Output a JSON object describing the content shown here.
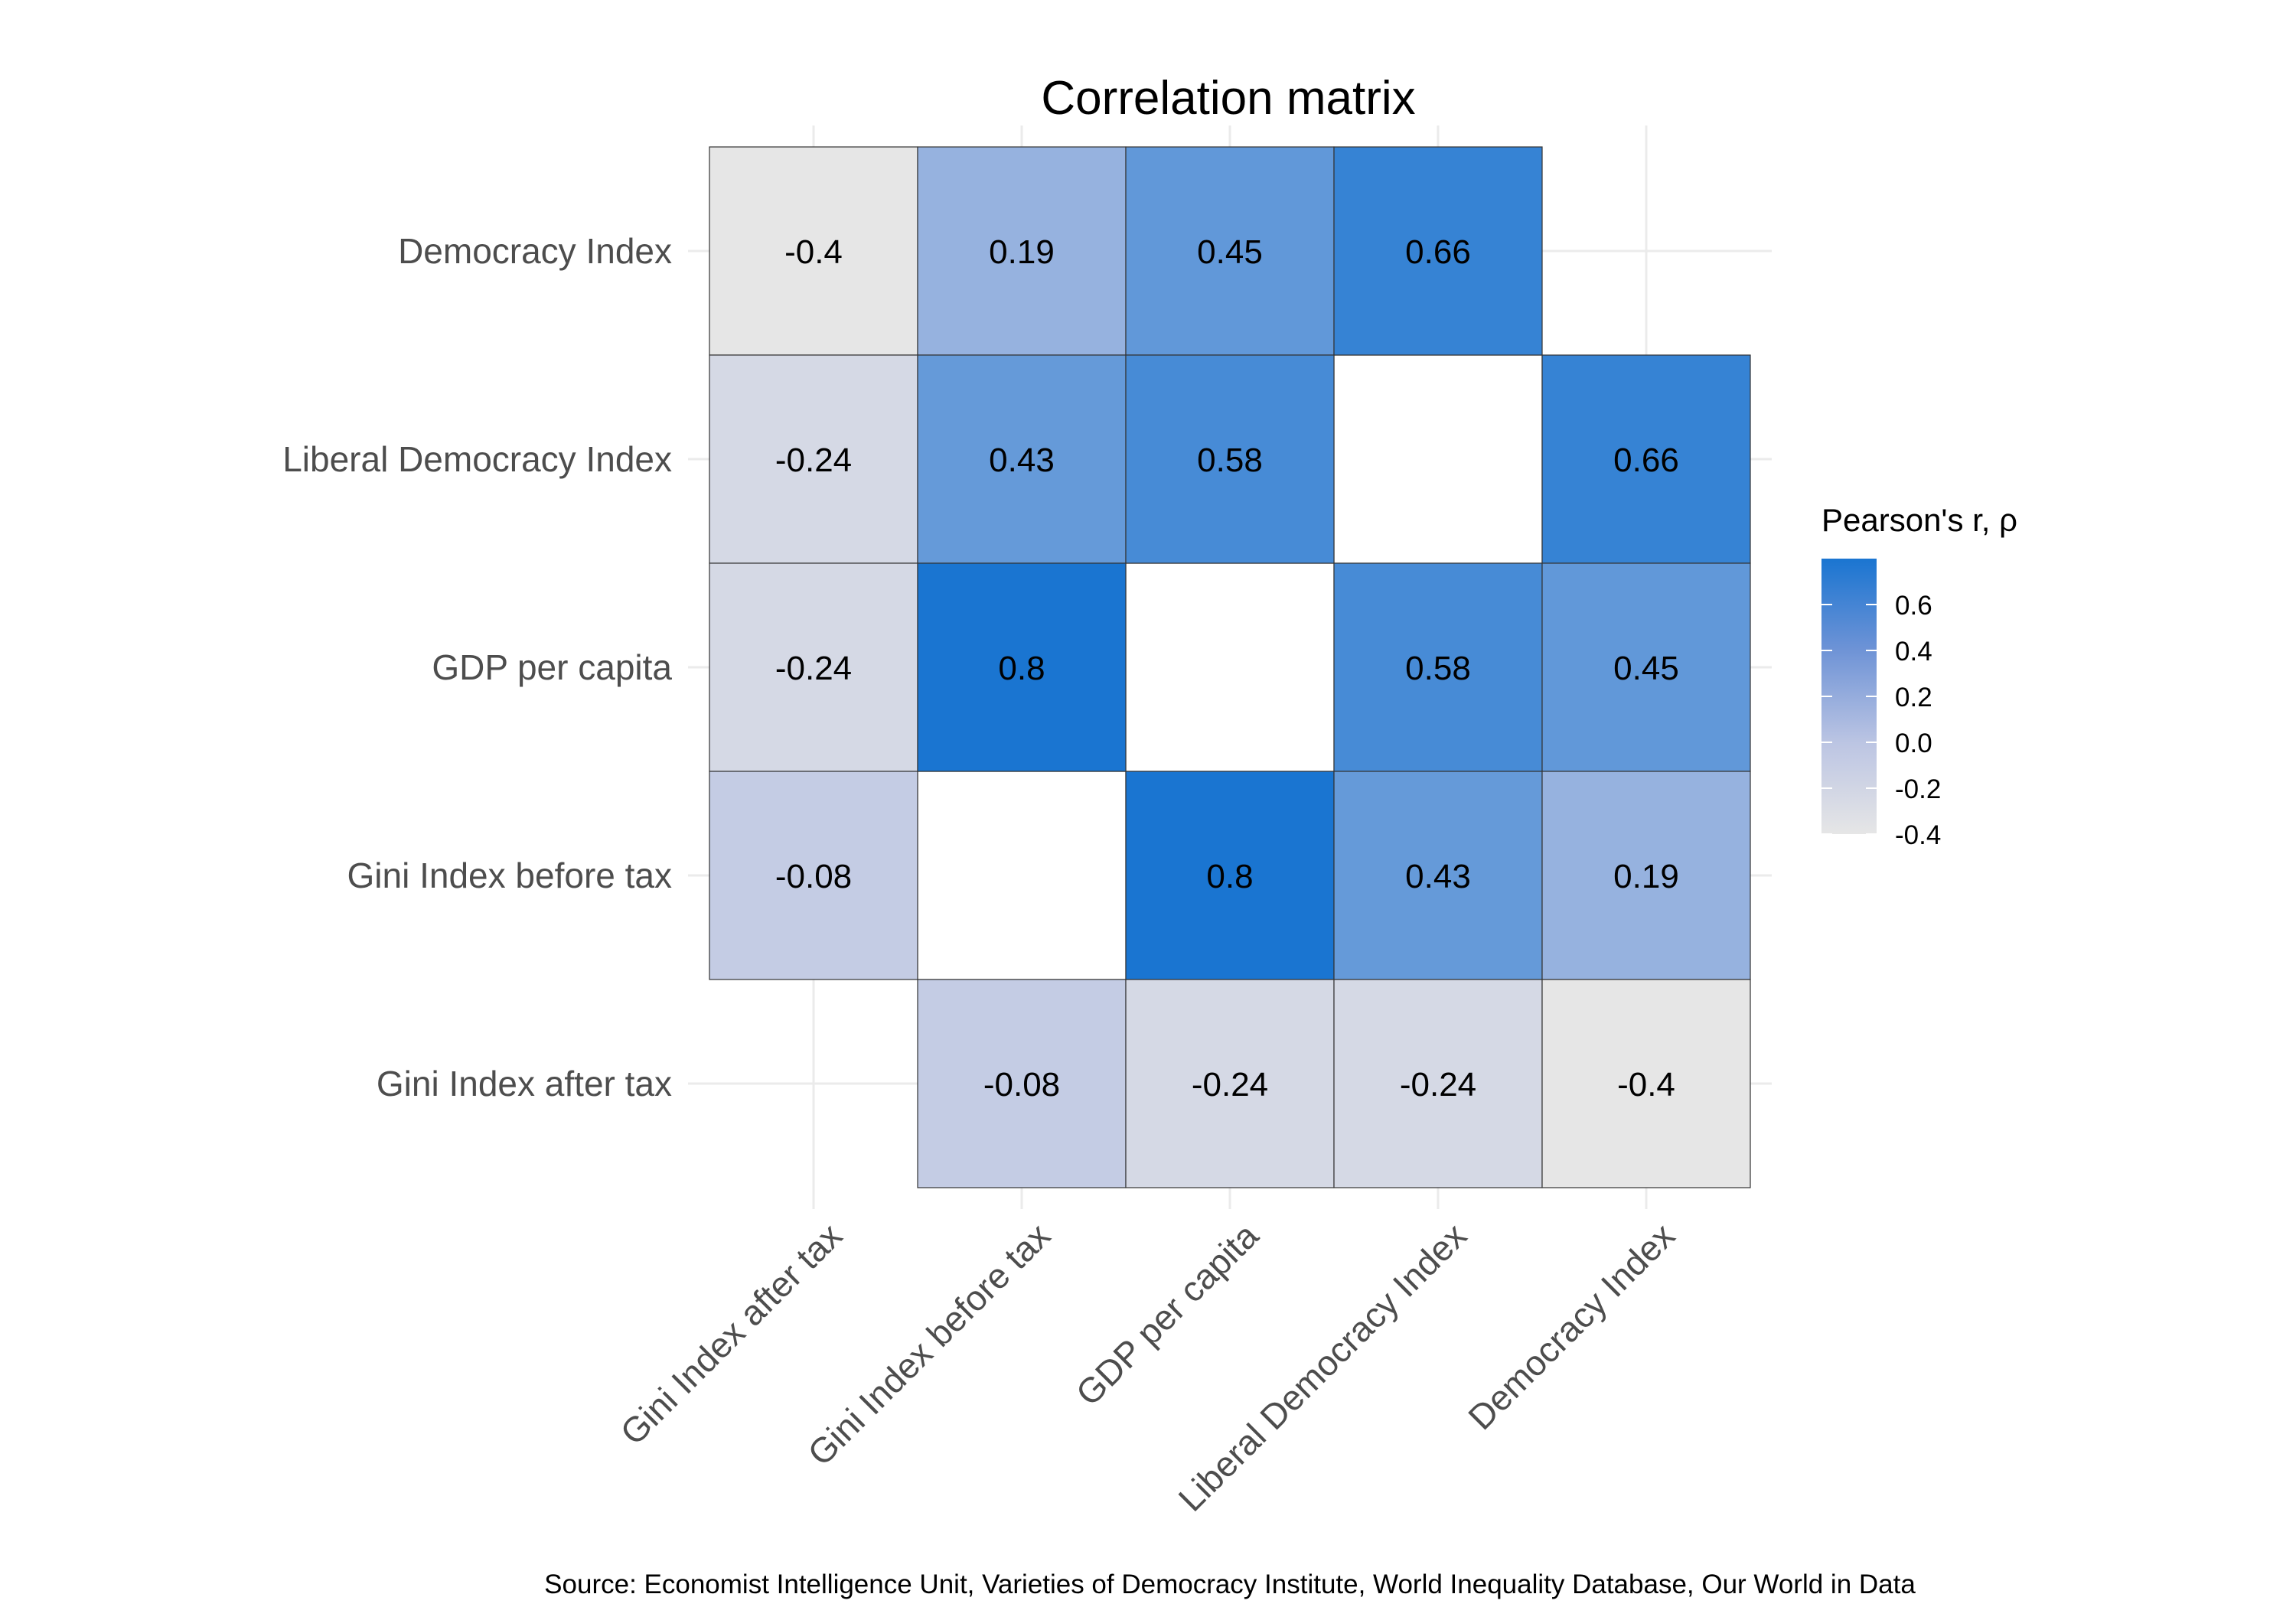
{
  "chart_data": {
    "type": "heatmap",
    "title": "Correlation matrix",
    "x_categories": [
      "Gini Index after tax",
      "Gini Index before tax",
      "GDP per capita",
      "Liberal Democracy Index",
      "Democracy Index"
    ],
    "y_categories": [
      "Democracy Index",
      "Liberal Democracy Index",
      "GDP per capita",
      "Gini Index before tax",
      "Gini Index after tax"
    ],
    "cells": [
      {
        "row": "Democracy Index",
        "col": "Gini Index after tax",
        "value": -0.4,
        "label": "-0.4"
      },
      {
        "row": "Democracy Index",
        "col": "Gini Index before tax",
        "value": 0.19,
        "label": "0.19"
      },
      {
        "row": "Democracy Index",
        "col": "GDP per capita",
        "value": 0.45,
        "label": "0.45"
      },
      {
        "row": "Democracy Index",
        "col": "Liberal Democracy Index",
        "value": 0.66,
        "label": "0.66"
      },
      {
        "row": "Liberal Democracy Index",
        "col": "Gini Index after tax",
        "value": -0.24,
        "label": "-0.24"
      },
      {
        "row": "Liberal Democracy Index",
        "col": "Gini Index before tax",
        "value": 0.43,
        "label": "0.43"
      },
      {
        "row": "Liberal Democracy Index",
        "col": "GDP per capita",
        "value": 0.58,
        "label": "0.58"
      },
      {
        "row": "Liberal Democracy Index",
        "col": "Democracy Index",
        "value": 0.66,
        "label": "0.66"
      },
      {
        "row": "GDP per capita",
        "col": "Gini Index after tax",
        "value": -0.24,
        "label": "-0.24"
      },
      {
        "row": "GDP per capita",
        "col": "Gini Index before tax",
        "value": 0.8,
        "label": "0.8"
      },
      {
        "row": "GDP per capita",
        "col": "Liberal Democracy Index",
        "value": 0.58,
        "label": "0.58"
      },
      {
        "row": "GDP per capita",
        "col": "Democracy Index",
        "value": 0.45,
        "label": "0.45"
      },
      {
        "row": "Gini Index before tax",
        "col": "Gini Index after tax",
        "value": -0.08,
        "label": "-0.08"
      },
      {
        "row": "Gini Index before tax",
        "col": "GDP per capita",
        "value": 0.8,
        "label": "0.8"
      },
      {
        "row": "Gini Index before tax",
        "col": "Liberal Democracy Index",
        "value": 0.43,
        "label": "0.43"
      },
      {
        "row": "Gini Index before tax",
        "col": "Democracy Index",
        "value": 0.19,
        "label": "0.19"
      },
      {
        "row": "Gini Index after tax",
        "col": "Gini Index before tax",
        "value": -0.08,
        "label": "-0.08"
      },
      {
        "row": "Gini Index after tax",
        "col": "GDP per capita",
        "value": -0.24,
        "label": "-0.24"
      },
      {
        "row": "Gini Index after tax",
        "col": "Liberal Democracy Index",
        "value": -0.24,
        "label": "-0.24"
      },
      {
        "row": "Gini Index after tax",
        "col": "Democracy Index",
        "value": -0.4,
        "label": "-0.4"
      }
    ],
    "white_cells": [
      {
        "row": "Liberal Democracy Index",
        "col": "Liberal Democracy Index"
      },
      {
        "row": "GDP per capita",
        "col": "GDP per capita"
      },
      {
        "row": "Gini Index before tax",
        "col": "Gini Index before tax"
      }
    ],
    "legend": {
      "title": "Pearson's r, ρ",
      "ticks": [
        0.6,
        0.4,
        0.2,
        0.0,
        -0.2,
        -0.4
      ],
      "tick_labels": [
        "0.6",
        "0.4",
        "0.2",
        "0.0",
        "-0.2",
        "-0.4"
      ],
      "range": [
        -0.4,
        0.8
      ],
      "low_color": "#e6e6e6",
      "mid_color": "#bcc5e3",
      "high_color": "#1a75d1",
      "placement": "right"
    },
    "grid": true
  },
  "source": "Source: Economist Intelligence Unit, Varieties of Democracy Institute, World Inequality Database, Our World in Data"
}
